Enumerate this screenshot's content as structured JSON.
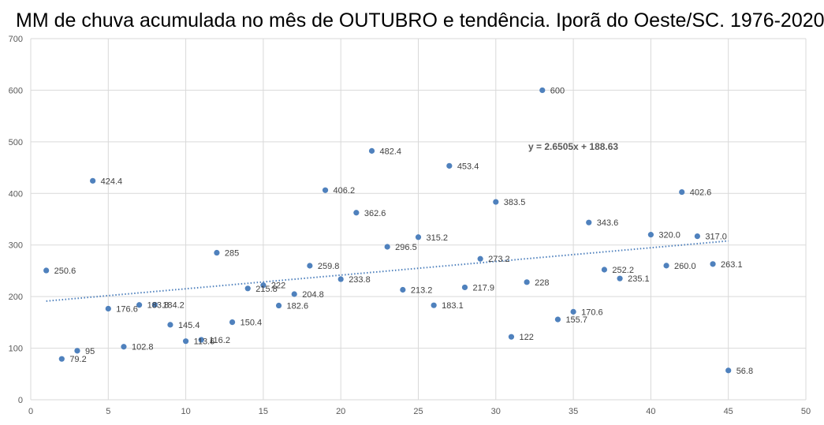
{
  "chart_data": {
    "type": "scatter",
    "title": "MM de chuva acumulada no mês de OUTUBRO e tendência. Iporã do Oeste/SC. 1976-2020",
    "xlim": [
      0,
      50
    ],
    "ylim": [
      0,
      700
    ],
    "x_ticks": [
      "0",
      "5",
      "10",
      "15",
      "20",
      "25",
      "30",
      "35",
      "40",
      "45",
      "50"
    ],
    "y_ticks": [
      "0",
      "100",
      "200",
      "300",
      "400",
      "500",
      "600",
      "700"
    ],
    "grid": true,
    "marker_color": "#4F81BD",
    "trendline": {
      "slope": 2.6505,
      "intercept": 188.63,
      "x_range": [
        1,
        45
      ],
      "style": "dotted",
      "equation": "y = 2.6505x + 188.63"
    },
    "points": [
      {
        "x": 1,
        "y": 250.6,
        "label": "250.6"
      },
      {
        "x": 2,
        "y": 79.2,
        "label": "79.2"
      },
      {
        "x": 3,
        "y": 95,
        "label": "95"
      },
      {
        "x": 4,
        "y": 424.4,
        "label": "424.4"
      },
      {
        "x": 5,
        "y": 176.6,
        "label": "176.6"
      },
      {
        "x": 6,
        "y": 102.8,
        "label": "102.8"
      },
      {
        "x": 7,
        "y": 183.8,
        "label": "183.8"
      },
      {
        "x": 8,
        "y": 184.2,
        "label": "184.2"
      },
      {
        "x": 9,
        "y": 145.4,
        "label": "145.4"
      },
      {
        "x": 10,
        "y": 113.6,
        "label": "113.6"
      },
      {
        "x": 11,
        "y": 116.2,
        "label": "116.2"
      },
      {
        "x": 12,
        "y": 285,
        "label": "285"
      },
      {
        "x": 13,
        "y": 150.4,
        "label": "150.4"
      },
      {
        "x": 14,
        "y": 215.8,
        "label": "215.8"
      },
      {
        "x": 15,
        "y": 222,
        "label": "222"
      },
      {
        "x": 16,
        "y": 182.6,
        "label": "182.6"
      },
      {
        "x": 17,
        "y": 204.8,
        "label": "204.8"
      },
      {
        "x": 18,
        "y": 259.8,
        "label": "259.8"
      },
      {
        "x": 19,
        "y": 406.2,
        "label": "406.2"
      },
      {
        "x": 20,
        "y": 233.8,
        "label": "233.8"
      },
      {
        "x": 21,
        "y": 362.6,
        "label": "362.6"
      },
      {
        "x": 22,
        "y": 482.4,
        "label": "482.4"
      },
      {
        "x": 23,
        "y": 296.5,
        "label": "296.5"
      },
      {
        "x": 24,
        "y": 213.2,
        "label": "213.2"
      },
      {
        "x": 25,
        "y": 315.2,
        "label": "315.2"
      },
      {
        "x": 26,
        "y": 183.1,
        "label": "183.1"
      },
      {
        "x": 27,
        "y": 453.4,
        "label": "453.4"
      },
      {
        "x": 28,
        "y": 217.9,
        "label": "217.9"
      },
      {
        "x": 29,
        "y": 273.2,
        "label": "273.2"
      },
      {
        "x": 30,
        "y": 383.5,
        "label": "383.5"
      },
      {
        "x": 31,
        "y": 122,
        "label": "122"
      },
      {
        "x": 32,
        "y": 228,
        "label": "228"
      },
      {
        "x": 33,
        "y": 600,
        "label": "600"
      },
      {
        "x": 34,
        "y": 155.7,
        "label": "155.7"
      },
      {
        "x": 35,
        "y": 170.6,
        "label": "170.6"
      },
      {
        "x": 36,
        "y": 343.6,
        "label": "343.6"
      },
      {
        "x": 37,
        "y": 252.2,
        "label": "252.2"
      },
      {
        "x": 38,
        "y": 235.1,
        "label": "235.1"
      },
      {
        "x": 40,
        "y": 320.0,
        "label": "320.0"
      },
      {
        "x": 41,
        "y": 260.0,
        "label": "260.0"
      },
      {
        "x": 42,
        "y": 402.6,
        "label": "402.6"
      },
      {
        "x": 43,
        "y": 317.0,
        "label": "317.0"
      },
      {
        "x": 44,
        "y": 263.1,
        "label": "263.1"
      },
      {
        "x": 45,
        "y": 56.8,
        "label": "56.8"
      }
    ]
  }
}
